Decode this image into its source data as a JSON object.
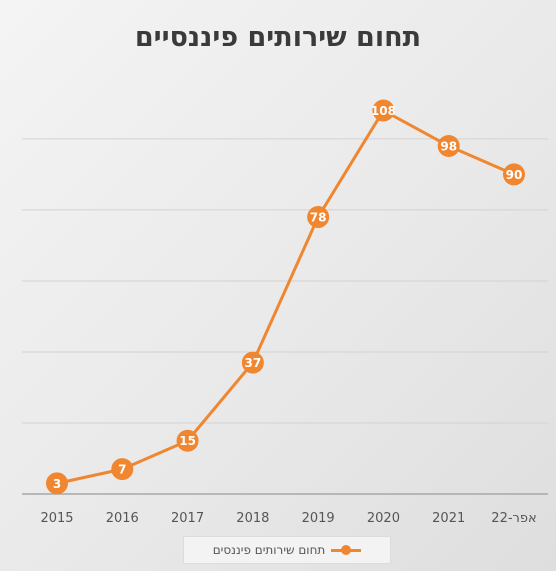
{
  "chart_data": {
    "type": "line",
    "title": "תחום שירותים פיננסיים",
    "categories": [
      "2015",
      "2016",
      "2017",
      "2018",
      "2019",
      "2020",
      "2021",
      "אפר-22"
    ],
    "series": [
      {
        "name": "תחום שירותים פיננסים",
        "values": [
          3,
          7,
          15,
          37,
          78,
          108,
          98,
          90
        ]
      }
    ],
    "ylim": [
      0,
      118
    ],
    "grid": true,
    "legend": "bottom",
    "color": "#f0862f"
  }
}
